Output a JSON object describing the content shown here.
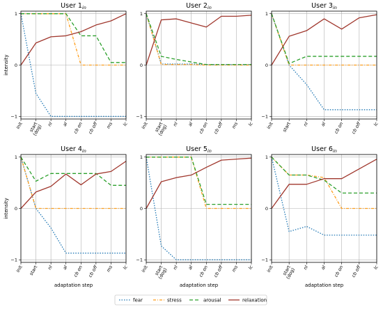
{
  "chart_data": {
    "type": "line",
    "ylim": [
      -1.05,
      1.05
    ],
    "yticks": [
      -1,
      0,
      1
    ],
    "grid": "x",
    "legend_placement": "bottom-center",
    "series_styles": [
      {
        "key": "fear",
        "color": "#1f77b4",
        "dash": "1.5,2"
      },
      {
        "key": "stress",
        "color": "#ff9e1b",
        "dash": "4,2,1,2"
      },
      {
        "key": "arousal",
        "color": "#2ca02c",
        "dash": "5,3"
      },
      {
        "key": "relaxation",
        "color": "#a0372d",
        "dash": ""
      }
    ],
    "legend": [
      {
        "key": "fear",
        "label": "fear"
      },
      {
        "key": "stress",
        "label": "stress"
      },
      {
        "key": "arousal",
        "label": "arousal"
      },
      {
        "key": "relaxation",
        "label": "relaxation"
      }
    ],
    "panels": [
      {
        "title": "User 1",
        "title_sub": "in",
        "ylabel": "intensity",
        "xlabel": "",
        "categories": [
          "init",
          "start\n(dog)",
          "nl",
          "al",
          "cb on",
          "cb off",
          "ms",
          "lc"
        ],
        "series": {
          "fear": [
            1.0,
            -0.55,
            -1.0,
            -1.0,
            -1.0,
            -1.0,
            -1.0,
            -1.0
          ],
          "stress": [
            1.0,
            1.0,
            1.0,
            1.0,
            0.0,
            0.0,
            0.0,
            0.0
          ],
          "arousal": [
            1.0,
            1.0,
            1.0,
            1.0,
            0.57,
            0.57,
            0.05,
            0.05
          ],
          "relaxation": [
            0.0,
            0.43,
            0.55,
            0.57,
            0.65,
            0.78,
            0.86,
            1.0
          ]
        }
      },
      {
        "title": "User 2",
        "title_sub": "in",
        "ylabel": "",
        "xlabel": "",
        "categories": [
          "init",
          "start\n(dog)",
          "nl",
          "al",
          "cb on",
          "cb off",
          "ms",
          "lc"
        ],
        "series": {
          "fear": [
            1.0,
            0.02,
            0.02,
            0.02,
            0.01,
            0.01,
            0.01,
            0.01
          ],
          "stress": [
            1.0,
            0.01,
            0.01,
            0.01,
            0.0,
            0.0,
            0.0,
            0.0
          ],
          "arousal": [
            1.0,
            0.17,
            0.11,
            0.06,
            0.01,
            0.01,
            0.01,
            0.01
          ],
          "relaxation": [
            0.0,
            0.88,
            0.9,
            0.82,
            0.74,
            0.95,
            0.95,
            0.97
          ]
        }
      },
      {
        "title": "User 3",
        "title_sub": "in",
        "ylabel": "",
        "xlabel": "",
        "categories": [
          "init",
          "start",
          "nl",
          "al",
          "cb on",
          "cb off",
          "lc"
        ],
        "series": {
          "fear": [
            1.0,
            0.0,
            -0.38,
            -0.87,
            -0.87,
            -0.87,
            -0.87
          ],
          "stress": [
            1.0,
            0.0,
            0.0,
            0.0,
            0.0,
            0.0,
            0.0
          ],
          "arousal": [
            1.0,
            0.03,
            0.17,
            0.17,
            0.17,
            0.17,
            0.17
          ],
          "relaxation": [
            0.0,
            0.56,
            0.67,
            0.9,
            0.7,
            0.92,
            0.98
          ]
        }
      },
      {
        "title": "User 4",
        "title_sub": "in",
        "ylabel": "intensity",
        "xlabel": "adaptation step",
        "categories": [
          "init",
          "start",
          "nl",
          "al",
          "cb on",
          "cb off",
          "ms",
          "lc"
        ],
        "series": {
          "fear": [
            1.0,
            0.0,
            -0.38,
            -0.87,
            -0.87,
            -0.87,
            -0.87,
            -0.87
          ],
          "stress": [
            1.0,
            0.0,
            0.0,
            0.0,
            0.0,
            0.0,
            0.0,
            0.0
          ],
          "arousal": [
            1.0,
            0.53,
            0.68,
            0.68,
            0.68,
            0.68,
            0.45,
            0.45
          ],
          "relaxation": [
            0.0,
            0.32,
            0.43,
            0.67,
            0.46,
            0.67,
            0.72,
            0.92
          ]
        }
      },
      {
        "title": "User 5",
        "title_sub": "in",
        "ylabel": "",
        "xlabel": "adaptation step",
        "categories": [
          "init",
          "start\n(dog)",
          "nl",
          "al",
          "cb on",
          "cb off",
          "ms",
          "lc"
        ],
        "series": {
          "fear": [
            1.0,
            -0.73,
            -1.0,
            -1.0,
            -1.0,
            -1.0,
            -1.0,
            -1.0
          ],
          "stress": [
            1.0,
            1.0,
            1.0,
            1.0,
            0.0,
            0.0,
            0.0,
            0.0
          ],
          "arousal": [
            1.0,
            1.0,
            1.0,
            1.0,
            0.08,
            0.08,
            0.08,
            0.08
          ],
          "relaxation": [
            0.0,
            0.52,
            0.6,
            0.65,
            0.8,
            0.94,
            0.96,
            0.98
          ]
        }
      },
      {
        "title": "User 6",
        "title_sub": "in",
        "ylabel": "",
        "xlabel": "adaptation step",
        "categories": [
          "init",
          "start\n(dog)",
          "nl",
          "al",
          "cb on",
          "cb off",
          "lc"
        ],
        "series": {
          "fear": [
            1.0,
            -0.45,
            -0.35,
            -0.52,
            -0.52,
            -0.52,
            -0.52
          ],
          "stress": [
            1.0,
            0.65,
            0.65,
            0.6,
            0.0,
            0.0,
            0.0
          ],
          "arousal": [
            1.0,
            0.65,
            0.65,
            0.55,
            0.3,
            0.3,
            0.3
          ],
          "relaxation": [
            0.0,
            0.47,
            0.47,
            0.58,
            0.58,
            0.77,
            0.96
          ]
        }
      }
    ]
  }
}
